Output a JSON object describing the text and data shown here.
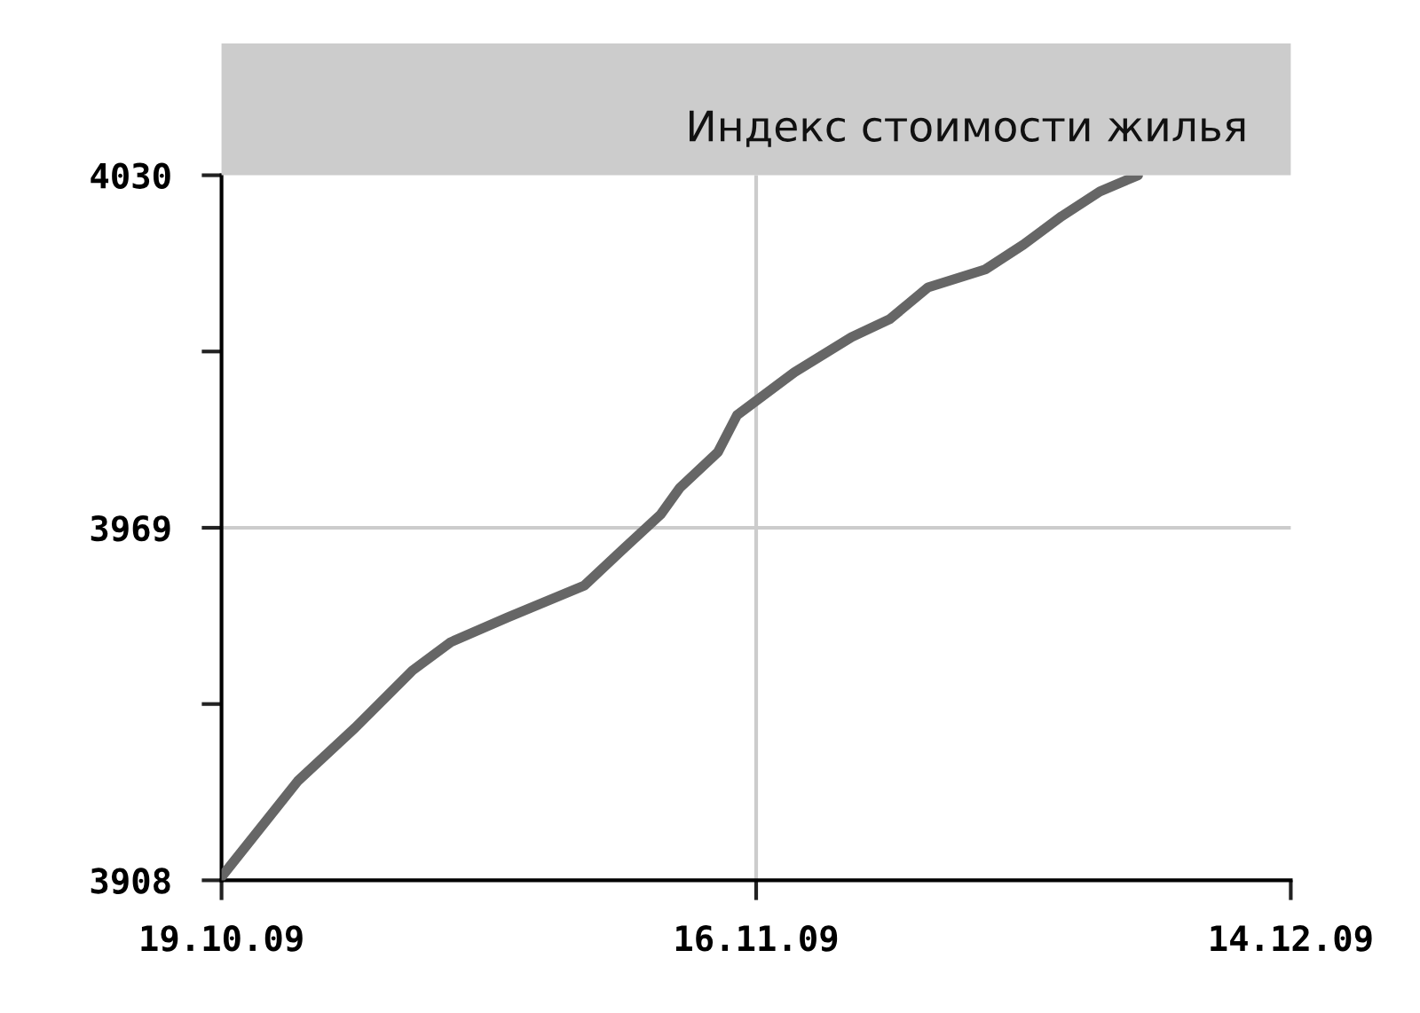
{
  "chart_data": {
    "type": "line",
    "title": "Индекс стоимости жилья",
    "x": [
      "2009-10-19",
      "2009-10-23",
      "2009-10-26",
      "2009-10-29",
      "2009-10-31",
      "2009-11-03",
      "2009-11-07",
      "2009-11-09",
      "2009-11-11",
      "2009-11-12",
      "2009-11-14",
      "2009-11-15",
      "2009-11-18",
      "2009-11-21",
      "2009-11-23",
      "2009-11-25",
      "2009-11-28",
      "2009-11-30",
      "2009-12-02",
      "2009-12-04",
      "2009-12-06"
    ],
    "series": [
      {
        "color": "#666666",
        "values": [
          3908.6,
          3925.2,
          3934.4,
          3944.3,
          3949.2,
          3953.5,
          3959.0,
          3965.2,
          3971.3,
          3975.9,
          3982.1,
          3988.5,
          3995.9,
          4002.0,
          4005.1,
          4010.6,
          4013.7,
          4018.0,
          4022.9,
          4027.2,
          4030.0
        ]
      }
    ],
    "xlim": [
      "2009-10-19",
      "2009-12-14"
    ],
    "xticks": [
      {
        "value": "2009-10-19",
        "label": "19.10.09"
      },
      {
        "value": "2009-11-16",
        "label": "16.11.09"
      },
      {
        "value": "2009-12-14",
        "label": "14.12.09"
      }
    ],
    "ylim": [
      3908,
      4030
    ],
    "yticks": [
      3908,
      {
        "value": 3938.5,
        "label": null
      },
      3969,
      {
        "value": 3999.5,
        "label": null
      },
      4030
    ],
    "grid": true,
    "marker": "none",
    "line_style": "solid"
  }
}
